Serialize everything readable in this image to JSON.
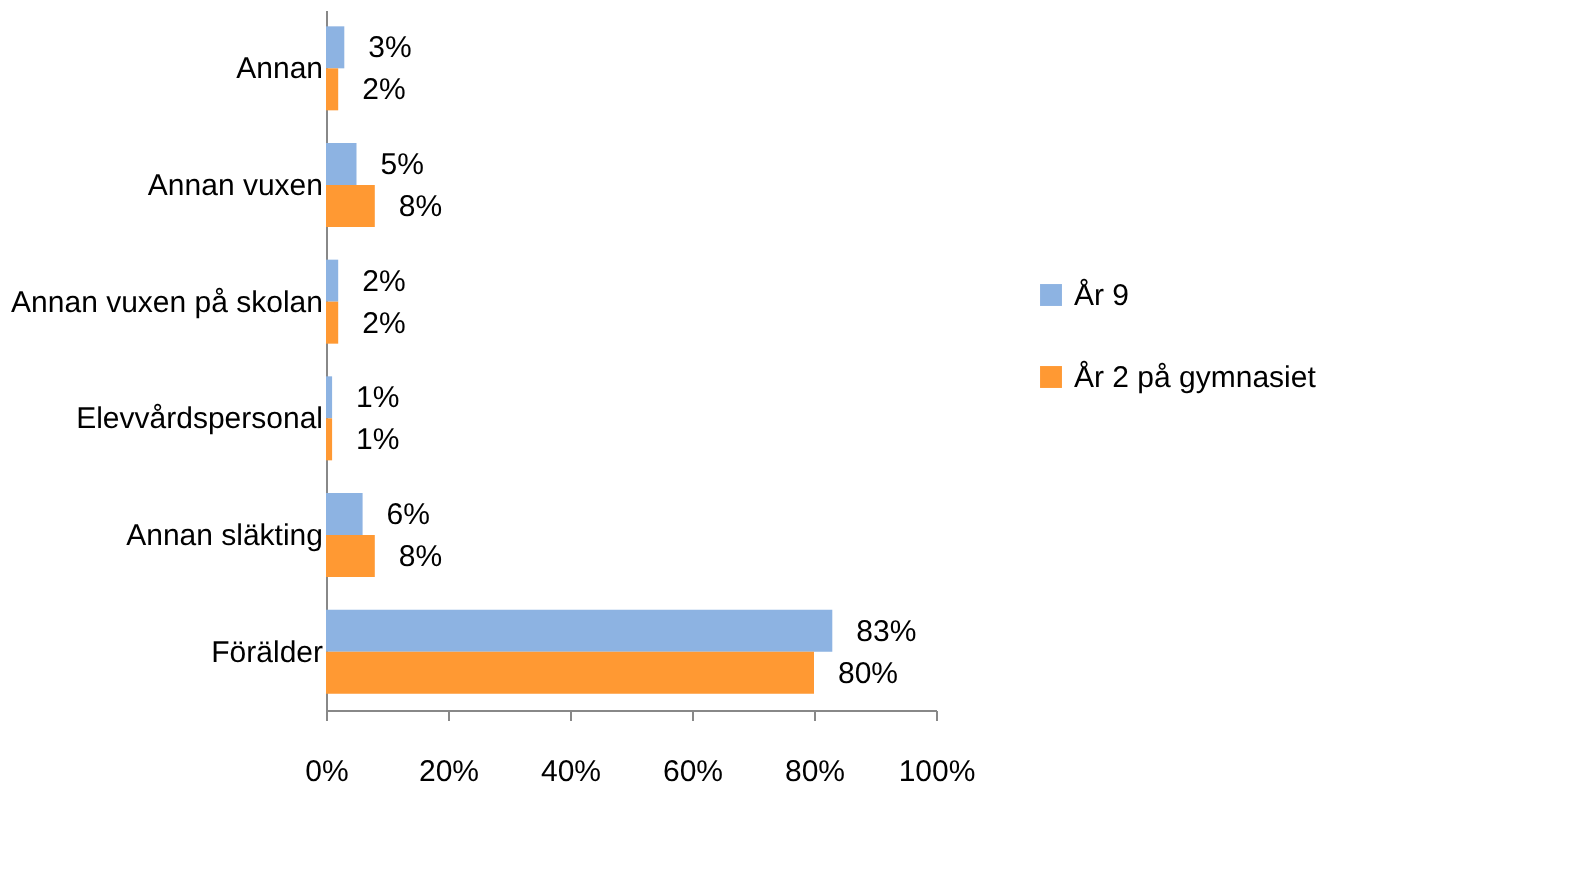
{
  "chart_data": {
    "type": "bar",
    "orientation": "horizontal",
    "categories": [
      "Annan",
      "Annan vuxen",
      "Annan vuxen på skolan",
      "Elevvårdspersonal",
      "Annan släkting",
      "Förälder"
    ],
    "series": [
      {
        "name": "År 9",
        "color": "#8db3e2",
        "values": [
          3,
          5,
          2,
          1,
          6,
          83
        ],
        "value_labels": [
          "3%",
          "5%",
          "2%",
          "1%",
          "6%",
          "83%"
        ]
      },
      {
        "name": "År 2 på gymnasiet",
        "color": "#ff9933",
        "values": [
          2,
          8,
          2,
          1,
          8,
          80
        ],
        "value_labels": [
          "2%",
          "8%",
          "2%",
          "1%",
          "8%",
          "80%"
        ]
      }
    ],
    "xlim": [
      0,
      100
    ],
    "xticks": [
      {
        "value": 0,
        "label": "0%"
      },
      {
        "value": 20,
        "label": "20%"
      },
      {
        "value": 40,
        "label": "40%"
      },
      {
        "value": 60,
        "label": "60%"
      },
      {
        "value": 80,
        "label": "80%"
      },
      {
        "value": 100,
        "label": "100%"
      }
    ],
    "grid": false,
    "legend": "right"
  }
}
